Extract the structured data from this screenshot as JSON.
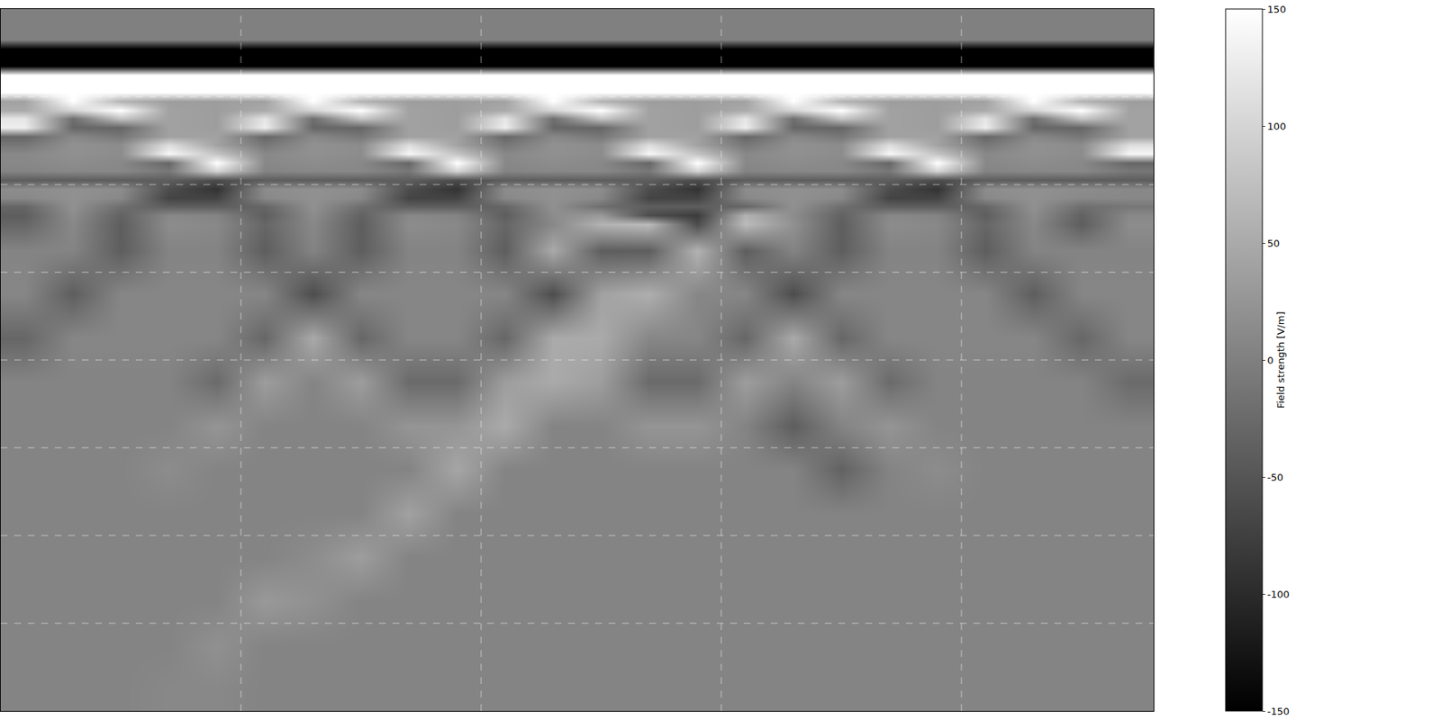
{
  "chart_data": {
    "type": "heatmap",
    "x": [
      0.1,
      0.3,
      0.5,
      0.7,
      0.9,
      1.1,
      1.3,
      1.5,
      1.7,
      1.9,
      2.1,
      2.3,
      2.5,
      2.7,
      2.9,
      3.1,
      3.3,
      3.5,
      3.7,
      3.9,
      4.1,
      4.3,
      4.5,
      4.7
    ],
    "y": [
      0.05,
      0.15,
      0.25,
      0.35,
      0.45,
      0.55,
      0.65,
      0.75,
      0.85,
      0.95,
      1.05,
      1.15,
      1.25,
      1.35,
      1.45,
      1.55,
      1.65,
      1.75,
      1.85,
      1.95,
      2.05,
      2.15,
      2.25,
      2.35,
      2.45,
      2.75,
      3.25,
      3.75,
      4.25,
      4.75,
      5.25,
      5.75,
      6.25,
      6.75,
      7.25,
      7.75
    ],
    "cells": [
      [
        0,
        0,
        0,
        0,
        0,
        0,
        0,
        0,
        0,
        0,
        0,
        0,
        0,
        0,
        0,
        0,
        0,
        0,
        0,
        0,
        0,
        0,
        0,
        0
      ],
      [
        0,
        0,
        0,
        0,
        0,
        0,
        0,
        0,
        0,
        0,
        0,
        0,
        0,
        0,
        0,
        0,
        0,
        0,
        0,
        0,
        0,
        0,
        0,
        0
      ],
      [
        0,
        0,
        0,
        0,
        0,
        0,
        0,
        0,
        0,
        0,
        0,
        0,
        0,
        0,
        0,
        0,
        0,
        0,
        0,
        0,
        0,
        0,
        0,
        0
      ],
      [
        0,
        0,
        0,
        0,
        0,
        0,
        0,
        0,
        0,
        0,
        0,
        0,
        0,
        0,
        0,
        0,
        0,
        0,
        0,
        0,
        0,
        0,
        0,
        0
      ],
      [
        -150,
        -150,
        -150,
        -150,
        -150,
        -150,
        -150,
        -150,
        -150,
        -150,
        -150,
        -150,
        -150,
        -150,
        -150,
        -150,
        -150,
        -150,
        -150,
        -150,
        -150,
        -150,
        -150,
        -150
      ],
      [
        -150,
        -150,
        -150,
        -150,
        -150,
        -150,
        -150,
        -150,
        -150,
        -150,
        -150,
        -150,
        -150,
        -150,
        -150,
        -150,
        -150,
        -150,
        -150,
        -150,
        -150,
        -150,
        -150,
        -150
      ],
      [
        -150,
        -150,
        -150,
        -150,
        -150,
        -150,
        -150,
        -150,
        -150,
        -150,
        -150,
        -150,
        -150,
        -150,
        -150,
        -150,
        -150,
        -150,
        -150,
        -150,
        -150,
        -150,
        -150,
        -150
      ],
      [
        150,
        150,
        150,
        150,
        150,
        150,
        150,
        150,
        150,
        150,
        150,
        150,
        150,
        150,
        150,
        150,
        150,
        150,
        150,
        150,
        150,
        150,
        150,
        150
      ],
      [
        150,
        150,
        150,
        150,
        150,
        150,
        150,
        150,
        150,
        150,
        150,
        150,
        150,
        150,
        150,
        150,
        150,
        150,
        150,
        150,
        150,
        150,
        150,
        150
      ],
      [
        150,
        150,
        150,
        150,
        150,
        150,
        150,
        150,
        150,
        150,
        150,
        150,
        150,
        150,
        150,
        150,
        150,
        150,
        150,
        150,
        150,
        150,
        150,
        150
      ],
      [
        40,
        150,
        60,
        35,
        35,
        40,
        150,
        60,
        35,
        35,
        40,
        150,
        60,
        35,
        35,
        40,
        150,
        60,
        35,
        35,
        40,
        150,
        60,
        35
      ],
      [
        50,
        100,
        150,
        40,
        35,
        50,
        100,
        150,
        40,
        35,
        50,
        100,
        150,
        40,
        35,
        50,
        100,
        150,
        40,
        35,
        50,
        100,
        150,
        40
      ],
      [
        120,
        -20,
        80,
        40,
        35,
        120,
        -20,
        80,
        40,
        35,
        120,
        -20,
        80,
        40,
        35,
        120,
        -20,
        80,
        40,
        35,
        120,
        -20,
        80,
        40
      ],
      [
        130,
        -30,
        -30,
        40,
        35,
        130,
        -30,
        -30,
        40,
        35,
        130,
        -30,
        -30,
        40,
        35,
        130,
        -30,
        -30,
        40,
        35,
        130,
        -30,
        -30,
        40
      ],
      [
        -30,
        10,
        -10,
        40,
        40,
        -30,
        10,
        -10,
        40,
        40,
        -30,
        10,
        -10,
        40,
        40,
        -30,
        10,
        -10,
        40,
        40,
        -30,
        10,
        -10,
        40
      ],
      [
        -10,
        20,
        15,
        110,
        40,
        -10,
        20,
        15,
        110,
        40,
        -10,
        20,
        15,
        110,
        40,
        -10,
        20,
        15,
        110,
        40,
        -10,
        20,
        15,
        110
      ],
      [
        10,
        20,
        15,
        140,
        80,
        10,
        20,
        15,
        140,
        80,
        10,
        20,
        15,
        140,
        80,
        10,
        20,
        15,
        140,
        80,
        10,
        20,
        15,
        140
      ],
      [
        10,
        15,
        10,
        -30,
        150,
        10,
        15,
        10,
        -30,
        150,
        10,
        15,
        10,
        -30,
        150,
        10,
        15,
        10,
        -30,
        150,
        10,
        15,
        10,
        -30
      ],
      [
        5,
        10,
        10,
        -10,
        100,
        5,
        10,
        10,
        -10,
        100,
        5,
        10,
        10,
        -10,
        100,
        5,
        10,
        10,
        -10,
        100,
        5,
        10,
        10,
        -10
      ],
      [
        -40,
        -40,
        -40,
        -40,
        -60,
        -40,
        -40,
        -40,
        -40,
        -60,
        -40,
        -40,
        -40,
        -40,
        -60,
        -40,
        -40,
        -40,
        -40,
        -60,
        -40,
        -40,
        -40,
        -40
      ],
      [
        15,
        20,
        15,
        -60,
        -90,
        15,
        20,
        15,
        -60,
        -90,
        15,
        20,
        15,
        -60,
        -90,
        15,
        20,
        15,
        -60,
        -90,
        15,
        20,
        15,
        10
      ],
      [
        10,
        20,
        10,
        -70,
        -70,
        10,
        20,
        10,
        -70,
        -70,
        10,
        20,
        10,
        -70,
        -70,
        10,
        20,
        10,
        -70,
        -70,
        10,
        20,
        10,
        10
      ],
      [
        -30,
        20,
        -20,
        -40,
        -40,
        -30,
        20,
        -20,
        -40,
        -40,
        -30,
        20,
        -20,
        -40,
        -40,
        -30,
        20,
        -20,
        -40,
        -40,
        -30,
        20,
        -20,
        -10
      ],
      [
        -40,
        15,
        -35,
        10,
        5,
        -40,
        15,
        -35,
        10,
        5,
        -40,
        15,
        30,
        -60,
        -80,
        60,
        15,
        -35,
        10,
        5,
        -40,
        15,
        -35,
        10
      ],
      [
        -30,
        10,
        -40,
        15,
        10,
        -30,
        10,
        -40,
        15,
        10,
        -30,
        10,
        60,
        70,
        -60,
        70,
        20,
        -40,
        15,
        10,
        -30,
        10,
        -40,
        15
      ],
      [
        5,
        5,
        -40,
        5,
        5,
        -40,
        5,
        -40,
        5,
        5,
        -40,
        50,
        -40,
        -40,
        60,
        -40,
        5,
        -40,
        5,
        5,
        -40,
        5,
        5,
        5
      ],
      [
        8,
        -40,
        8,
        8,
        8,
        8,
        -60,
        8,
        8,
        8,
        8,
        -60,
        40,
        55,
        8,
        8,
        -60,
        8,
        8,
        8,
        8,
        -40,
        8,
        8
      ],
      [
        -30,
        8,
        8,
        8,
        8,
        -30,
        50,
        -30,
        8,
        8,
        -30,
        50,
        50,
        8,
        8,
        -30,
        50,
        -30,
        8,
        8,
        8,
        8,
        -30,
        8
      ],
      [
        5,
        5,
        5,
        5,
        -25,
        35,
        5,
        35,
        -25,
        -25,
        35,
        50,
        35,
        -25,
        -25,
        35,
        5,
        35,
        -25,
        5,
        5,
        5,
        5,
        -25
      ],
      [
        5,
        5,
        5,
        5,
        25,
        5,
        5,
        5,
        25,
        25,
        50,
        5,
        5,
        25,
        25,
        5,
        -40,
        5,
        25,
        5,
        5,
        5,
        5,
        5
      ],
      [
        5,
        5,
        5,
        15,
        5,
        5,
        5,
        5,
        5,
        45,
        5,
        5,
        5,
        5,
        5,
        5,
        5,
        -35,
        5,
        15,
        5,
        5,
        5,
        5
      ],
      [
        5,
        5,
        5,
        5,
        5,
        5,
        5,
        5,
        40,
        5,
        5,
        5,
        5,
        5,
        5,
        5,
        5,
        5,
        5,
        5,
        5,
        5,
        5,
        5
      ],
      [
        5,
        5,
        5,
        5,
        5,
        5,
        15,
        35,
        5,
        5,
        5,
        5,
        5,
        5,
        5,
        5,
        5,
        5,
        5,
        5,
        5,
        5,
        5,
        5
      ],
      [
        5,
        5,
        5,
        5,
        5,
        30,
        20,
        5,
        5,
        5,
        5,
        5,
        5,
        5,
        5,
        5,
        5,
        5,
        5,
        5,
        5,
        5,
        5,
        5
      ],
      [
        5,
        5,
        5,
        5,
        20,
        5,
        5,
        5,
        5,
        5,
        5,
        5,
        5,
        5,
        5,
        5,
        5,
        5,
        5,
        5,
        5,
        5,
        5,
        5
      ],
      [
        5,
        5,
        5,
        10,
        10,
        5,
        5,
        5,
        5,
        5,
        5,
        5,
        5,
        5,
        5,
        5,
        5,
        5,
        5,
        5,
        5,
        5,
        5,
        5
      ]
    ],
    "xlim": [
      0,
      4.8
    ],
    "ylim": [
      8,
      0
    ],
    "xticks": [
      1,
      2,
      3,
      4
    ],
    "yticks": [
      1,
      2,
      3,
      4,
      5,
      6,
      7
    ],
    "tick_labels": false,
    "grid": true,
    "colorbar": {
      "title": "Field strength [V/m]",
      "range": [
        -150,
        150
      ],
      "ticks": [
        -150,
        -100,
        -50,
        0,
        50,
        100,
        150
      ]
    }
  }
}
